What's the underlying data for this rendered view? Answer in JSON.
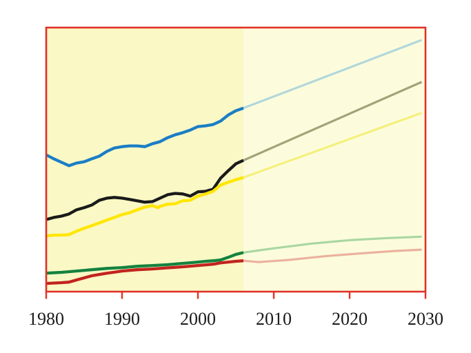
{
  "page": {
    "background_color": "#FFFFFF"
  },
  "chart_data": {
    "type": "line",
    "title": "",
    "xlabel": "",
    "ylabel": "",
    "legend": "none",
    "grid": false,
    "frame_color": "#E03128",
    "tick_color": "#E03128",
    "label_color": "#1A1A1A",
    "x_axis": {
      "range": [
        1980,
        2030
      ],
      "ticks": [
        1980,
        1990,
        2000,
        2010,
        2020,
        2030
      ],
      "tick_labels": [
        "1980",
        "1990",
        "2000",
        "2010",
        "2020",
        "2030"
      ]
    },
    "y_axis": {
      "visible": false,
      "range": [
        0,
        100
      ],
      "units": "relative height (no y-axis labels shown in image)"
    },
    "regions": {
      "history": {
        "from": 1980,
        "to": 2006,
        "bg_color": "#FAF8C4"
      },
      "projection": {
        "from": 2006,
        "to": 2030,
        "bg_color": "#FCFCDD"
      }
    },
    "series": [
      {
        "id": "blue-line",
        "history_color": "#1B7EC6",
        "projection_color": "#B2D7DA",
        "history": [
          [
            1980,
            51.8
          ],
          [
            1981,
            50.3
          ],
          [
            1982,
            49.0
          ],
          [
            1983,
            47.7
          ],
          [
            1984,
            48.7
          ],
          [
            1985,
            49.2
          ],
          [
            1986,
            50.3
          ],
          [
            1987,
            51.3
          ],
          [
            1988,
            53.1
          ],
          [
            1989,
            54.4
          ],
          [
            1990,
            54.9
          ],
          [
            1991,
            55.2
          ],
          [
            1992,
            55.2
          ],
          [
            1993,
            54.9
          ],
          [
            1994,
            56.0
          ],
          [
            1995,
            56.8
          ],
          [
            1996,
            58.3
          ],
          [
            1997,
            59.4
          ],
          [
            1998,
            60.2
          ],
          [
            1999,
            61.2
          ],
          [
            2000,
            62.5
          ],
          [
            2001,
            62.8
          ],
          [
            2002,
            63.3
          ],
          [
            2003,
            64.6
          ],
          [
            2004,
            66.9
          ],
          [
            2005,
            68.5
          ],
          [
            2006,
            69.5
          ]
        ],
        "projection": [
          [
            2006,
            69.5
          ],
          [
            2029.5,
            95.3
          ]
        ]
      },
      {
        "id": "black-line",
        "history_color": "#1A1A1A",
        "projection_color": "#A3A379",
        "history": [
          [
            1980,
            27.3
          ],
          [
            1981,
            28.1
          ],
          [
            1982,
            28.6
          ],
          [
            1983,
            29.4
          ],
          [
            1984,
            31.0
          ],
          [
            1985,
            31.8
          ],
          [
            1986,
            32.8
          ],
          [
            1987,
            34.6
          ],
          [
            1988,
            35.4
          ],
          [
            1989,
            35.7
          ],
          [
            1990,
            35.4
          ],
          [
            1991,
            34.9
          ],
          [
            1992,
            34.4
          ],
          [
            1993,
            33.9
          ],
          [
            1994,
            34.1
          ],
          [
            1995,
            35.4
          ],
          [
            1996,
            36.7
          ],
          [
            1997,
            37.2
          ],
          [
            1998,
            37.0
          ],
          [
            1999,
            36.2
          ],
          [
            2000,
            37.8
          ],
          [
            2001,
            38.0
          ],
          [
            2002,
            38.8
          ],
          [
            2003,
            43.0
          ],
          [
            2004,
            45.8
          ],
          [
            2005,
            48.4
          ],
          [
            2006,
            49.7
          ]
        ],
        "projection": [
          [
            2006,
            49.7
          ],
          [
            2029.5,
            79.4
          ]
        ]
      },
      {
        "id": "yellow-line",
        "history_color": "#FFE603",
        "projection_color": "#F5F07D",
        "history": [
          [
            1980,
            21.1
          ],
          [
            1981,
            21.4
          ],
          [
            1982,
            21.4
          ],
          [
            1983,
            21.6
          ],
          [
            1984,
            22.9
          ],
          [
            1985,
            24.0
          ],
          [
            1986,
            25.0
          ],
          [
            1987,
            26.0
          ],
          [
            1988,
            27.1
          ],
          [
            1989,
            28.1
          ],
          [
            1990,
            29.2
          ],
          [
            1991,
            29.9
          ],
          [
            1992,
            31.0
          ],
          [
            1993,
            32.0
          ],
          [
            1994,
            32.6
          ],
          [
            1994.7,
            31.8
          ],
          [
            1995,
            32.3
          ],
          [
            1996,
            33.1
          ],
          [
            1997,
            33.3
          ],
          [
            1998,
            34.4
          ],
          [
            1999,
            34.6
          ],
          [
            2000,
            36.2
          ],
          [
            2001,
            37.0
          ],
          [
            2002,
            38.0
          ],
          [
            2003,
            40.4
          ],
          [
            2004,
            41.4
          ],
          [
            2005,
            42.4
          ],
          [
            2006,
            43.2
          ]
        ],
        "projection": [
          [
            2006,
            43.2
          ],
          [
            2029.5,
            67.7
          ]
        ]
      },
      {
        "id": "green-line",
        "history_color": "#148240",
        "projection_color": "#A9D7A1",
        "history": [
          [
            1980,
            7.0
          ],
          [
            1982,
            7.3
          ],
          [
            1984,
            7.8
          ],
          [
            1986,
            8.3
          ],
          [
            1988,
            8.8
          ],
          [
            1990,
            9.1
          ],
          [
            1992,
            9.6
          ],
          [
            1994,
            9.9
          ],
          [
            1996,
            10.2
          ],
          [
            1998,
            10.7
          ],
          [
            2000,
            11.2
          ],
          [
            2001,
            11.5
          ],
          [
            2002,
            11.7
          ],
          [
            2003,
            12.0
          ],
          [
            2004,
            13.0
          ],
          [
            2005,
            14.1
          ],
          [
            2006,
            14.8
          ]
        ],
        "projection": [
          [
            2006,
            14.8
          ],
          [
            2010,
            16.4
          ],
          [
            2015,
            18.2
          ],
          [
            2020,
            19.5
          ],
          [
            2025,
            20.3
          ],
          [
            2029.5,
            20.8
          ]
        ]
      },
      {
        "id": "red-line",
        "history_color": "#C2241F",
        "projection_color": "#EBB29E",
        "history": [
          [
            1980,
            3.1
          ],
          [
            1982,
            3.4
          ],
          [
            1983,
            3.6
          ],
          [
            1984,
            4.4
          ],
          [
            1985,
            5.2
          ],
          [
            1986,
            6.0
          ],
          [
            1987,
            6.5
          ],
          [
            1988,
            7.0
          ],
          [
            1989,
            7.4
          ],
          [
            1990,
            7.8
          ],
          [
            1992,
            8.3
          ],
          [
            1994,
            8.6
          ],
          [
            1996,
            9.0
          ],
          [
            1998,
            9.4
          ],
          [
            2000,
            9.9
          ],
          [
            2002,
            10.4
          ],
          [
            2003,
            10.9
          ],
          [
            2004,
            11.2
          ],
          [
            2005,
            11.5
          ],
          [
            2006,
            11.7
          ]
        ],
        "projection": [
          [
            2006,
            11.7
          ],
          [
            2008,
            11.2
          ],
          [
            2012,
            12.0
          ],
          [
            2017,
            13.5
          ],
          [
            2022,
            14.6
          ],
          [
            2026,
            15.4
          ],
          [
            2029.5,
            15.9
          ]
        ]
      }
    ]
  }
}
